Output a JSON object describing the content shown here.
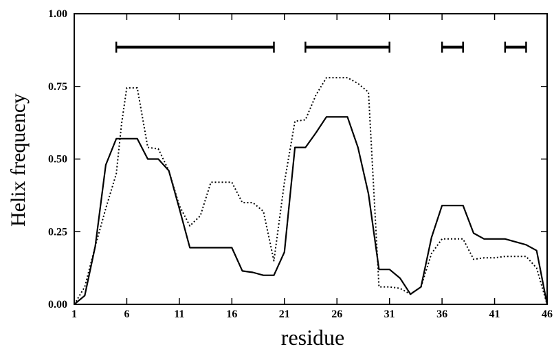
{
  "chart_data": {
    "type": "line",
    "title": "",
    "xlabel": "residue",
    "ylabel": "Helix frequency",
    "xlim": [
      1,
      46
    ],
    "ylim": [
      0,
      1
    ],
    "grid": false,
    "x_ticks": [
      1,
      6,
      11,
      16,
      21,
      26,
      31,
      36,
      41,
      46
    ],
    "x_tick_labels": [
      "1",
      "6",
      "11",
      "16",
      "21",
      "26",
      "31",
      "36",
      "41",
      "46"
    ],
    "y_ticks": [
      0,
      0.25,
      0.5,
      0.75,
      1.0
    ],
    "y_tick_labels": [
      "0.00",
      "0.25",
      "0.50",
      "0.75",
      "1.00"
    ],
    "series": [
      {
        "style": "solid",
        "color": "#000000",
        "x": [
          1,
          2,
          3,
          4,
          5,
          6,
          7,
          8,
          9,
          10,
          11,
          12,
          13,
          14,
          15,
          16,
          17,
          18,
          19,
          20,
          21,
          22,
          23,
          24,
          25,
          26,
          27,
          28,
          29,
          30,
          31,
          32,
          33,
          34,
          35,
          36,
          37,
          38,
          39,
          40,
          41,
          42,
          43,
          44,
          45,
          46
        ],
        "y": [
          0.0,
          0.03,
          0.2,
          0.48,
          0.57,
          0.57,
          0.57,
          0.5,
          0.5,
          0.46,
          0.33,
          0.195,
          0.195,
          0.195,
          0.195,
          0.195,
          0.115,
          0.11,
          0.1,
          0.1,
          0.18,
          0.54,
          0.54,
          0.59,
          0.645,
          0.645,
          0.645,
          0.54,
          0.38,
          0.12,
          0.12,
          0.09,
          0.035,
          0.06,
          0.23,
          0.34,
          0.34,
          0.34,
          0.245,
          0.225,
          0.225,
          0.225,
          0.215,
          0.205,
          0.185,
          0.0
        ]
      },
      {
        "style": "dotted",
        "color": "#000000",
        "x": [
          1,
          2,
          3,
          4,
          5,
          5.5,
          6,
          7,
          8,
          9,
          10,
          11,
          12,
          13,
          14,
          15,
          16,
          17,
          18,
          19,
          20,
          21,
          22,
          23,
          24,
          25,
          26,
          27,
          28,
          29,
          30,
          31,
          32,
          33,
          34,
          35,
          36,
          37,
          38,
          39,
          40,
          41,
          42,
          43,
          44,
          45,
          46
        ],
        "y": [
          0.0,
          0.06,
          0.2,
          0.33,
          0.45,
          0.62,
          0.745,
          0.745,
          0.54,
          0.535,
          0.46,
          0.34,
          0.27,
          0.305,
          0.42,
          0.42,
          0.42,
          0.35,
          0.35,
          0.32,
          0.15,
          0.42,
          0.63,
          0.635,
          0.72,
          0.78,
          0.78,
          0.78,
          0.76,
          0.73,
          0.06,
          0.06,
          0.055,
          0.035,
          0.06,
          0.175,
          0.225,
          0.225,
          0.225,
          0.155,
          0.16,
          0.16,
          0.165,
          0.165,
          0.165,
          0.125,
          0.0
        ]
      }
    ],
    "helix_segments": [
      {
        "start": 5,
        "end": 20,
        "y": 0.885
      },
      {
        "start": 23,
        "end": 31,
        "y": 0.885
      },
      {
        "start": 36,
        "end": 38,
        "y": 0.885
      },
      {
        "start": 42,
        "end": 44,
        "y": 0.885
      }
    ]
  }
}
